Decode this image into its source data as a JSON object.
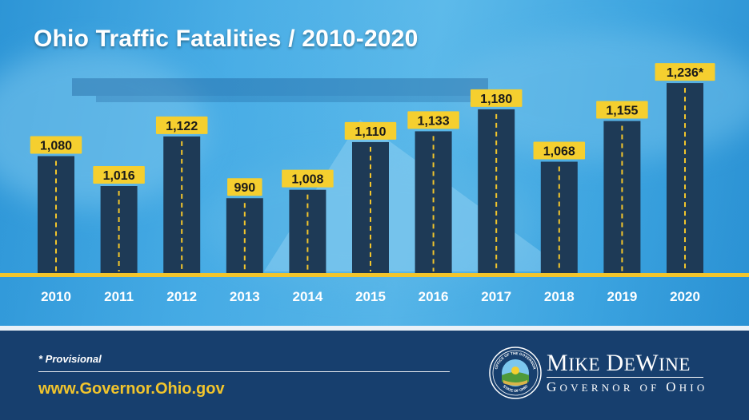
{
  "chart_data": {
    "type": "bar",
    "title": "Ohio Traffic Fatalities / 2010-2020",
    "categories": [
      "2010",
      "2011",
      "2012",
      "2013",
      "2014",
      "2015",
      "2016",
      "2017",
      "2018",
      "2019",
      "2020"
    ],
    "values": [
      1080,
      1016,
      1122,
      990,
      1008,
      1110,
      1133,
      1180,
      1068,
      1155,
      1236
    ],
    "value_labels": [
      "1,080",
      "1,016",
      "1,122",
      "990",
      "1,008",
      "1,110",
      "1,133",
      "1,180",
      "1,068",
      "1,155",
      "1,236*"
    ],
    "xlabel": "",
    "ylabel": "",
    "ylim": [
      830,
      1260
    ],
    "grid": false,
    "legend": "none",
    "colors": {
      "bar": "#1e3a56",
      "label_box": "#f5cf2f",
      "label_text": "#1a1a1a",
      "lane_dash": "#f2c52c",
      "axis_text": "#ffffff"
    }
  },
  "footer": {
    "footnote": "* Provisional",
    "website": "www.Governor.Ohio.gov",
    "seal_text_top": "OFFICE OF THE GOVERNOR",
    "seal_text_bottom": "STATE OF OHIO",
    "governor_name": "Mike DeWine",
    "governor_title": "Governor of Ohio"
  },
  "colors": {
    "footer_bg": "#173f6e",
    "accent_yellow": "#f2c52c",
    "sky_blue": "#3ea5e0"
  }
}
